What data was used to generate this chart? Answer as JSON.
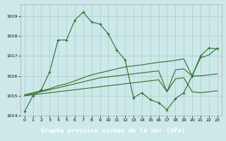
{
  "title": "Graphe pression niveau de la mer (hPa)",
  "bg_color": "#cce8e8",
  "grid_color": "#aacccc",
  "line_color": "#2d6e2d",
  "xlim": [
    -0.5,
    23.5
  ],
  "ylim": [
    1014.0,
    1019.6
  ],
  "yticks": [
    1014,
    1015,
    1016,
    1017,
    1018,
    1019
  ],
  "xticks": [
    0,
    1,
    2,
    3,
    4,
    5,
    6,
    7,
    8,
    9,
    10,
    11,
    12,
    13,
    14,
    15,
    16,
    17,
    18,
    19,
    20,
    21,
    22,
    23
  ],
  "s1_x": [
    0,
    1,
    2,
    3,
    4,
    5,
    6,
    7,
    8,
    9,
    10,
    11,
    12,
    13,
    14,
    15,
    16,
    17,
    18,
    19,
    20,
    21,
    22,
    23
  ],
  "s1_y": [
    1014.2,
    1015.0,
    1015.3,
    1016.2,
    1017.8,
    1017.8,
    1018.8,
    1019.2,
    1018.7,
    1018.6,
    1018.1,
    1017.3,
    1016.8,
    1014.9,
    1015.15,
    1014.8,
    1014.65,
    1014.3,
    1014.85,
    1015.15,
    1016.0,
    1017.0,
    1017.4,
    1017.35
  ],
  "s2_x": [
    0,
    1,
    2,
    3,
    4,
    5,
    6,
    7,
    8,
    9,
    10,
    11,
    12,
    13,
    14,
    15,
    16,
    17,
    18,
    19,
    20,
    21,
    22,
    23
  ],
  "s2_y": [
    1015.05,
    1015.15,
    1015.25,
    1015.35,
    1015.5,
    1015.6,
    1015.75,
    1015.9,
    1016.05,
    1016.15,
    1016.25,
    1016.35,
    1016.45,
    1016.5,
    1016.55,
    1016.62,
    1016.68,
    1016.72,
    1016.78,
    1016.85,
    1016.0,
    1016.9,
    1017.05,
    1017.4
  ],
  "s3_x": [
    0,
    1,
    2,
    3,
    4,
    5,
    6,
    7,
    8,
    9,
    10,
    11,
    12,
    13,
    14,
    15,
    16,
    17,
    18,
    19,
    20,
    21,
    22,
    23
  ],
  "s3_y": [
    1015.0,
    1015.1,
    1015.2,
    1015.3,
    1015.4,
    1015.5,
    1015.6,
    1015.7,
    1015.8,
    1015.9,
    1015.95,
    1016.0,
    1016.05,
    1016.1,
    1016.15,
    1016.2,
    1016.25,
    1015.2,
    1016.3,
    1016.35,
    1016.0,
    1016.0,
    1016.05,
    1016.1
  ],
  "s4_x": [
    0,
    1,
    2,
    3,
    4,
    5,
    6,
    7,
    8,
    9,
    10,
    11,
    12,
    13,
    14,
    15,
    16,
    17,
    18,
    19,
    20,
    21,
    22,
    23
  ],
  "s4_y": [
    1015.0,
    1015.05,
    1015.1,
    1015.15,
    1015.2,
    1015.25,
    1015.3,
    1015.35,
    1015.4,
    1015.45,
    1015.5,
    1015.55,
    1015.6,
    1015.65,
    1015.7,
    1015.75,
    1015.8,
    1015.2,
    1015.85,
    1015.9,
    1015.2,
    1015.15,
    1015.2,
    1015.25
  ],
  "title_bg": "#2d6e2d",
  "title_fg": "white",
  "title_fontsize": 6.5
}
